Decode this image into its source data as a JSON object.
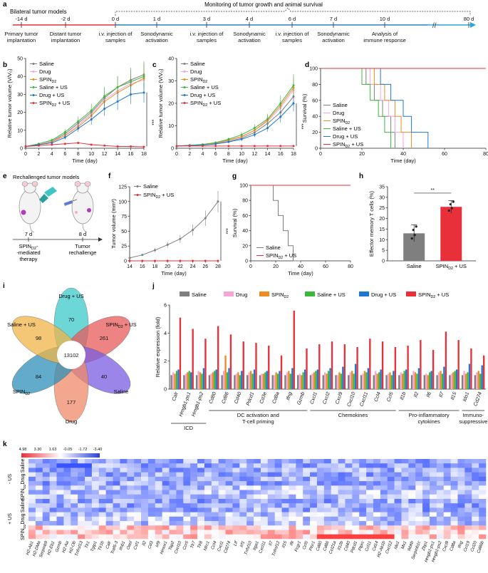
{
  "panels": {
    "a": "a",
    "b": "b",
    "c": "c",
    "d": "d",
    "e": "e",
    "f": "f",
    "g": "g",
    "h": "h",
    "i": "i",
    "j": "j",
    "k": "k"
  },
  "timeline": {
    "header_left": "Bilateral tumor models",
    "header_right": "Monitoring of tumor growth and animal survival",
    "days": [
      "-14 d",
      "-2 d",
      "0 d",
      "1 d",
      "3 d",
      "4 d",
      "6 d",
      "7 d",
      "10 d",
      "80 d"
    ],
    "labels": [
      [
        "Primary tumor",
        "implantation"
      ],
      [
        "Distant tumor",
        "implantation"
      ],
      [
        "i.v. injection of",
        "samples"
      ],
      [
        "Sonodynamic",
        "activation"
      ],
      [
        "i.v. injection of",
        "samples"
      ],
      [
        "Sonodynamic",
        "activation"
      ],
      [
        "i.v. injection of",
        "samples"
      ],
      [
        "Sonodynamic",
        "activation"
      ],
      [
        "Analysis of",
        "immune response"
      ]
    ],
    "break_mark": "//"
  },
  "legend_groups": [
    "Saline",
    "Drug",
    "SPIN",
    "Saline + US",
    "Drug + US",
    "SPIN + US"
  ],
  "spin_sub": "D2",
  "colors": {
    "Saline": "#7f7f7f",
    "Drug": "#f4a6d7",
    "SPIN": "#f08a24",
    "Saline + US": "#3cb83c",
    "Drug + US": "#1f78d1",
    "SPIN + US": "#e8303a"
  },
  "significance": {
    "triple": "***",
    "double": "**"
  },
  "chart_data": [
    {
      "id": "b",
      "type": "line",
      "ylabel": "Relative tumor volume (V/V₀)",
      "xlabel": "Time (day)",
      "x": [
        0,
        2,
        4,
        6,
        8,
        10,
        12,
        14,
        16,
        18
      ],
      "xlim": [
        0,
        18
      ],
      "ylim": [
        0,
        50
      ],
      "yticks": [
        0,
        10,
        20,
        30,
        40,
        50
      ],
      "series": [
        {
          "name": "Saline",
          "values": [
            1,
            2,
            4,
            8,
            14,
            20,
            28,
            34,
            38,
            41
          ]
        },
        {
          "name": "Drug",
          "values": [
            1,
            2,
            4,
            7,
            13,
            19,
            27,
            32,
            36,
            38
          ]
        },
        {
          "name": "SPIN",
          "values": [
            1,
            2,
            3.5,
            7,
            12,
            18,
            26,
            31,
            35,
            39
          ]
        },
        {
          "name": "Saline + US",
          "values": [
            1,
            2.5,
            4.5,
            9,
            15,
            21,
            29,
            34,
            37,
            40
          ]
        },
        {
          "name": "Drug + US",
          "values": [
            1,
            2,
            3,
            6,
            11,
            16,
            22,
            26,
            30,
            31
          ]
        },
        {
          "name": "SPIN + US",
          "values": [
            1,
            1.5,
            2,
            2.5,
            3,
            2,
            1.5,
            1,
            1,
            0.8
          ]
        }
      ]
    },
    {
      "id": "c",
      "type": "line",
      "ylabel": "Relative tumor volume (V/V₀)",
      "xlabel": "Time (day)",
      "x": [
        0,
        2,
        4,
        6,
        8,
        10,
        12,
        14,
        16,
        18
      ],
      "xlim": [
        0,
        18
      ],
      "ylim": [
        0,
        40
      ],
      "yticks": [
        0,
        10,
        20,
        30,
        40
      ],
      "series": [
        {
          "name": "Saline",
          "values": [
            1,
            1.2,
            1.5,
            2,
            3,
            4.5,
            7,
            11,
            16,
            23
          ]
        },
        {
          "name": "Drug",
          "values": [
            1,
            1.2,
            1.5,
            2.2,
            3.5,
            5,
            8,
            12,
            18,
            26
          ]
        },
        {
          "name": "SPIN",
          "values": [
            1,
            1.3,
            1.6,
            2.3,
            3.6,
            5.2,
            8,
            12.5,
            19,
            27
          ]
        },
        {
          "name": "Saline + US",
          "values": [
            1,
            1.3,
            1.7,
            2.5,
            4,
            6,
            9,
            13,
            20,
            28
          ]
        },
        {
          "name": "Drug + US",
          "values": [
            1,
            1.2,
            1.4,
            1.9,
            2.8,
            4,
            6,
            9,
            14,
            20
          ]
        },
        {
          "name": "SPIN + US",
          "values": [
            1,
            1,
            1,
            1,
            1,
            1,
            1,
            1,
            1,
            1
          ]
        }
      ]
    },
    {
      "id": "d",
      "type": "line",
      "ylabel": "Survival (%)",
      "xlabel": "Time (day)",
      "xlim": [
        0,
        80
      ],
      "ylim": [
        0,
        100
      ],
      "xticks": [
        0,
        20,
        40,
        60,
        80
      ],
      "yticks": [
        0,
        20,
        40,
        60,
        80,
        100
      ],
      "series": [
        {
          "name": "Saline",
          "steps": [
            [
              0,
              100
            ],
            [
              22,
              100
            ],
            [
              22,
              80
            ],
            [
              26,
              80
            ],
            [
              26,
              60
            ],
            [
              30,
              60
            ],
            [
              30,
              40
            ],
            [
              34,
              40
            ],
            [
              34,
              20
            ],
            [
              36,
              20
            ],
            [
              36,
              0
            ]
          ]
        },
        {
          "name": "Drug",
          "steps": [
            [
              0,
              100
            ],
            [
              24,
              100
            ],
            [
              24,
              80
            ],
            [
              29,
              80
            ],
            [
              29,
              60
            ],
            [
              33,
              60
            ],
            [
              33,
              40
            ],
            [
              36,
              40
            ],
            [
              36,
              20
            ],
            [
              40,
              20
            ],
            [
              40,
              0
            ]
          ]
        },
        {
          "name": "SPIN",
          "steps": [
            [
              0,
              100
            ],
            [
              26,
              100
            ],
            [
              26,
              80
            ],
            [
              31,
              80
            ],
            [
              31,
              60
            ],
            [
              36,
              60
            ],
            [
              36,
              40
            ],
            [
              39,
              40
            ],
            [
              39,
              20
            ],
            [
              44,
              20
            ],
            [
              44,
              0
            ]
          ]
        },
        {
          "name": "Saline + US",
          "steps": [
            [
              0,
              100
            ],
            [
              20,
              100
            ],
            [
              20,
              80
            ],
            [
              24,
              80
            ],
            [
              24,
              60
            ],
            [
              28,
              60
            ],
            [
              28,
              40
            ],
            [
              31,
              40
            ],
            [
              31,
              20
            ],
            [
              34,
              20
            ],
            [
              34,
              0
            ]
          ]
        },
        {
          "name": "Drug + US",
          "steps": [
            [
              0,
              100
            ],
            [
              29,
              100
            ],
            [
              29,
              80
            ],
            [
              34,
              80
            ],
            [
              34,
              60
            ],
            [
              40,
              60
            ],
            [
              40,
              40
            ],
            [
              44,
              40
            ],
            [
              44,
              20
            ],
            [
              52,
              20
            ],
            [
              52,
              0
            ]
          ]
        },
        {
          "name": "SPIN + US",
          "steps": [
            [
              0,
              100
            ],
            [
              80,
              100
            ]
          ]
        }
      ]
    },
    {
      "id": "f",
      "type": "line",
      "ylabel": "Tumor volume (mm³)",
      "xlabel": "Time (day)",
      "x": [
        14,
        16,
        18,
        20,
        22,
        24,
        26,
        28
      ],
      "xlim": [
        14,
        28
      ],
      "ylim": [
        0,
        125
      ],
      "yticks": [
        0,
        25,
        50,
        75,
        100,
        125
      ],
      "series": [
        {
          "name": "Saline",
          "values": [
            5,
            10,
            18,
            27,
            37,
            52,
            72,
            100
          ]
        },
        {
          "name": "SPIN + US",
          "values": [
            0,
            0,
            0,
            0,
            0,
            0,
            0,
            0
          ]
        }
      ]
    },
    {
      "id": "g",
      "type": "line",
      "ylabel": "Survival (%)",
      "xlabel": "Time (day)",
      "xlim": [
        0,
        80
      ],
      "ylim": [
        0,
        100
      ],
      "xticks": [
        0,
        20,
        40,
        60,
        80
      ],
      "yticks": [
        0,
        20,
        40,
        60,
        80,
        100
      ],
      "series": [
        {
          "name": "Saline",
          "steps": [
            [
              0,
              100
            ],
            [
              18,
              100
            ],
            [
              18,
              80
            ],
            [
              22,
              80
            ],
            [
              22,
              60
            ],
            [
              26,
              60
            ],
            [
              26,
              40
            ],
            [
              30,
              40
            ],
            [
              30,
              20
            ],
            [
              34,
              20
            ],
            [
              34,
              0
            ],
            [
              40,
              0
            ]
          ]
        },
        {
          "name": "SPIN + US",
          "steps": [
            [
              0,
              100
            ],
            [
              80,
              100
            ]
          ]
        }
      ]
    },
    {
      "id": "h",
      "type": "bar",
      "ylabel": "Effector memory T cells (%)",
      "categories": [
        "Saline",
        "SPIN + US"
      ],
      "values": [
        13,
        25.5
      ],
      "errors": [
        4,
        3
      ],
      "ylim": [
        0,
        35
      ],
      "yticks": [
        0,
        5,
        10,
        15,
        20,
        25,
        30,
        35
      ]
    },
    {
      "id": "j",
      "type": "bar",
      "ylabel": "Relative expression (fold)",
      "ylim": [
        0,
        6
      ],
      "yticks": [
        0,
        2,
        4,
        6
      ],
      "genes": [
        "Calr",
        "Hmgb1-ps1",
        "Hmgb1-ps2",
        "Cd80",
        "Cd86",
        "Cd40",
        "Pdcd1",
        "Cd3e",
        "Cd8a",
        "Ifng",
        "Gzmb",
        "Cxcl1",
        "Cxcl2",
        "Cxcl9",
        "Cxcl10",
        "Cxcl11",
        "Ccl4",
        "Ccl5",
        "Il1b",
        "Il2",
        "Il6",
        "Il7",
        "Il15",
        "Ido1",
        "Cd274"
      ],
      "values": [
        [
          1,
          1.2,
          1.1,
          1.3,
          1.4,
          5.1
        ],
        [
          1,
          1.1,
          1.2,
          1.3,
          1.2,
          4.3
        ],
        [
          1,
          1.3,
          1.2,
          1.1,
          1.5,
          3.6
        ],
        [
          1,
          1.1,
          1.2,
          1.3,
          1.4,
          4.5
        ],
        [
          1,
          1.3,
          2.4,
          1.2,
          1.5,
          3.9
        ],
        [
          1,
          1.1,
          1.2,
          1.0,
          1.3,
          3.4
        ],
        [
          1,
          1.2,
          1.3,
          1.1,
          1.4,
          3.3
        ],
        [
          1,
          1.1,
          1.1,
          1.2,
          1.3,
          3.1
        ],
        [
          1,
          1.0,
          1.2,
          1.1,
          1.3,
          2.4
        ],
        [
          1,
          1.2,
          1.3,
          1.1,
          1.5,
          5.6
        ],
        [
          1,
          1.1,
          1.0,
          1.2,
          1.4,
          2.9
        ],
        [
          1,
          1.1,
          1.2,
          1.3,
          1.4,
          3.2
        ],
        [
          1,
          1.2,
          1.1,
          1.3,
          1.5,
          3.4
        ],
        [
          1,
          1.0,
          1.2,
          1.1,
          1.6,
          3.2
        ],
        [
          1,
          1.2,
          1.3,
          1.1,
          1.8,
          3.0
        ],
        [
          1,
          1.1,
          1.3,
          1.2,
          1.5,
          3.6
        ],
        [
          1,
          1.3,
          1.1,
          1.2,
          1.4,
          3.4
        ],
        [
          1,
          1.1,
          1.2,
          1.0,
          1.3,
          3.0
        ],
        [
          1,
          1.2,
          1.1,
          1.3,
          1.4,
          3.1
        ],
        [
          1,
          1.3,
          1.2,
          1.1,
          1.5,
          3.5
        ],
        [
          1,
          1.1,
          1.0,
          1.2,
          1.3,
          2.8
        ],
        [
          1,
          1.2,
          1.3,
          1.1,
          1.6,
          4.1
        ],
        [
          1,
          1.1,
          1.2,
          1.3,
          1.4,
          3.5
        ],
        [
          1,
          1.3,
          1.1,
          1.2,
          1.8,
          2.9
        ],
        [
          1,
          1.2,
          1.3,
          1.1,
          1.7,
          2.4
        ]
      ],
      "gene_groups": [
        {
          "label": "ICD",
          "from": 0,
          "to": 2
        },
        {
          "label": "DC activation and",
          "label2": "T-cell priming",
          "from": 3,
          "to": 10
        },
        {
          "label": "Chemokines",
          "from": 11,
          "to": 17
        },
        {
          "label": "Pro-inflammatory",
          "label2": "cytokines",
          "from": 18,
          "to": 22
        },
        {
          "label": "Immuno-",
          "label2": "suppressive",
          "from": 23,
          "to": 24
        }
      ]
    },
    {
      "id": "k",
      "type": "heatmap",
      "scale_labels": [
        "4.98",
        "3.30",
        "1.63",
        "-0.05",
        "-1.72",
        "-3.40"
      ],
      "row_groups": [
        "Saline",
        "Drug",
        "SPIN",
        "Saline",
        "Drug",
        "SPIN"
      ],
      "us_labels": [
        "- US",
        "+ US"
      ],
      "rows_per_group": 3,
      "genes": [
        "H2-Ab1",
        "H2-DMa",
        "Serpinb9",
        "H2-Eb1",
        "Gzmb",
        "H2-Aa",
        "H2-Ob",
        "Tnfrsf13",
        "Tlr1",
        "Tgtp1",
        "Tlr1b",
        "Calr",
        "Traf6-3",
        "Ifnb1",
        "Oasl",
        "Csf1",
        "Il2",
        "Cd3",
        "Irf9",
        "Hmox1",
        "Tap2",
        "Cxcl10",
        "Ccr5",
        "Tlr7",
        "Tlr8",
        "Nlrc1",
        "Ccl4",
        "Cxcl1",
        "Cd274",
        "Ltf",
        "Irf1",
        "Tnfsf10",
        "Itga1",
        "Cxcl11",
        "Il7",
        "Tnfrsf12",
        "Il15",
        "Ifit",
        "Fcgr1",
        "Ccl5",
        "Ptsr1",
        "Cd80",
        "Cd86",
        "Ccl21a",
        "Il12b",
        "Cd40",
        "Pdcd1",
        "Ptprc",
        "Ccl11",
        "Cd14",
        "H2-Ab1b",
        "Cxcl12",
        "Ido1",
        "Mx1",
        "Ikbkb",
        "Serpinb1c",
        "Zbp1",
        "Hmgb1-ps1",
        "Hmgb1-ps2",
        "Cxcl9",
        "Cd8a",
        "Ifng",
        "Ccl19",
        "Ccl20",
        "Cd86b"
      ]
    }
  ],
  "panel_i": {
    "petals": [
      {
        "name": "Drug + US",
        "count": "70"
      },
      {
        "name": "SPIN + US",
        "count": "261"
      },
      {
        "name": "Saline",
        "count": "40"
      },
      {
        "name": "Drug",
        "count": "177"
      },
      {
        "name": "SPIN",
        "count": "84"
      },
      {
        "name": "Saline + US",
        "count": "98"
      }
    ],
    "center_count": "13102"
  },
  "panel_e": {
    "title": "Rechallenged tumor models",
    "day1": "7 d",
    "day2": "8 d",
    "label1": [
      "SPIN",
      "-mediated",
      "therapy"
    ],
    "label2": [
      "Tumor",
      "rechallenge"
    ]
  }
}
